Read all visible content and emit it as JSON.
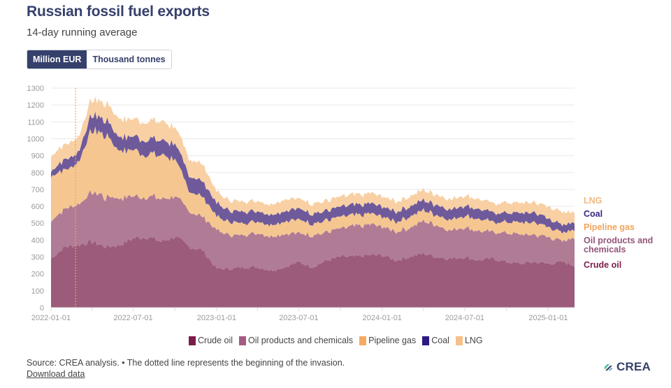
{
  "header": {
    "title": "Russian fossil fuel exports",
    "subtitle": "14-day running average"
  },
  "toggle": {
    "options": [
      {
        "label": "Million EUR",
        "active": true
      },
      {
        "label": "Thousand tonnes",
        "active": false
      }
    ]
  },
  "chart_data": {
    "type": "area",
    "stacked": true,
    "title": "Russian fossil fuel exports",
    "subtitle": "14-day running average",
    "unit": "Million EUR",
    "xlabel": "",
    "ylabel": "",
    "ylim": [
      0,
      1300
    ],
    "yticks": [
      0,
      100,
      200,
      300,
      400,
      500,
      600,
      700,
      800,
      900,
      1000,
      1100,
      1200,
      1300
    ],
    "xlim": [
      "2022-01-01",
      "2025-02-28"
    ],
    "xticks": [
      "2022-01-01",
      "2022-07-01",
      "2023-01-01",
      "2023-07-01",
      "2024-01-01",
      "2024-07-01",
      "2025-01-01"
    ],
    "grid": true,
    "annotation": {
      "type": "vertical-dotted-line",
      "date": "2022-02-24",
      "meaning": "beginning of the invasion"
    },
    "x": [
      "2022-01-01",
      "2022-02-01",
      "2022-03-01",
      "2022-04-01",
      "2022-05-01",
      "2022-06-01",
      "2022-07-01",
      "2022-08-01",
      "2022-09-01",
      "2022-10-01",
      "2022-11-01",
      "2022-12-01",
      "2023-01-01",
      "2023-02-01",
      "2023-03-01",
      "2023-04-01",
      "2023-05-01",
      "2023-06-01",
      "2023-07-01",
      "2023-08-01",
      "2023-09-01",
      "2023-10-01",
      "2023-11-01",
      "2023-12-01",
      "2024-01-01",
      "2024-02-01",
      "2024-03-01",
      "2024-04-01",
      "2024-05-01",
      "2024-06-01",
      "2024-07-01",
      "2024-08-01",
      "2024-09-01",
      "2024-10-01",
      "2024-11-01",
      "2024-12-01",
      "2025-01-01",
      "2025-02-01",
      "2025-02-28"
    ],
    "series": [
      {
        "name": "Crude oil",
        "color": "#9c5b7a",
        "values": [
          290,
          360,
          370,
          390,
          360,
          370,
          410,
          420,
          390,
          420,
          360,
          340,
          230,
          230,
          240,
          240,
          220,
          240,
          270,
          240,
          280,
          300,
          300,
          310,
          310,
          280,
          300,
          320,
          300,
          290,
          300,
          280,
          290,
          270,
          260,
          270,
          260,
          270,
          250
        ]
      },
      {
        "name": "Oil products and chemicals",
        "color": "#b07b95",
        "values": [
          220,
          230,
          240,
          300,
          290,
          280,
          250,
          240,
          260,
          240,
          210,
          200,
          230,
          200,
          190,
          200,
          200,
          200,
          170,
          190,
          170,
          170,
          180,
          180,
          170,
          170,
          170,
          190,
          190,
          170,
          180,
          170,
          160,
          170,
          170,
          160,
          160,
          120,
          170
        ]
      },
      {
        "name": "Pipeline gas",
        "color": "#f5c690",
        "values": [
          270,
          230,
          250,
          370,
          370,
          280,
          270,
          250,
          260,
          220,
          120,
          120,
          80,
          80,
          70,
          70,
          70,
          75,
          80,
          70,
          70,
          70,
          65,
          65,
          60,
          60,
          65,
          65,
          60,
          65,
          70,
          70,
          60,
          65,
          70,
          75,
          60,
          50,
          50
        ]
      },
      {
        "name": "Coal",
        "color": "#6e5a9b",
        "values": [
          30,
          60,
          60,
          90,
          90,
          80,
          80,
          90,
          90,
          90,
          90,
          90,
          80,
          65,
          70,
          60,
          60,
          60,
          65,
          60,
          55,
          60,
          60,
          60,
          60,
          60,
          60,
          60,
          60,
          60,
          60,
          60,
          55,
          55,
          55,
          60,
          50,
          45,
          45
        ]
      },
      {
        "name": "LNG",
        "color": "#f8d0a4",
        "values": [
          90,
          90,
          90,
          90,
          100,
          110,
          100,
          110,
          110,
          100,
          100,
          100,
          70,
          60,
          60,
          60,
          60,
          70,
          60,
          60,
          60,
          60,
          60,
          60,
          60,
          60,
          60,
          60,
          60,
          60,
          60,
          60,
          55,
          60,
          60,
          60,
          70,
          75,
          60
        ]
      }
    ],
    "series_end_labels": [
      "LNG",
      "Coal",
      "Pipeline gas",
      "Oil products and chemicals",
      "Crude oil"
    ],
    "legend_position": "bottom"
  },
  "series_labels": {
    "lng": "LNG",
    "coal": "Coal",
    "pipeline_gas": "Pipeline gas",
    "oil_products_line1": "Oil products and",
    "oil_products_line2": "chemicals",
    "crude_oil": "Crude oil"
  },
  "legend": {
    "items": [
      {
        "label": "Crude oil",
        "color": "#7b1d4b"
      },
      {
        "label": "Oil products and chemicals",
        "color": "#a35d82"
      },
      {
        "label": "Pipeline gas",
        "color": "#f5ac62"
      },
      {
        "label": "Coal",
        "color": "#2e1a82"
      },
      {
        "label": "LNG",
        "color": "#f7c08a"
      }
    ]
  },
  "footer": {
    "source": "Source: CREA analysis. • The dotted line represents the beginning of the invasion.",
    "download": "Download data",
    "logo": "CREA"
  }
}
